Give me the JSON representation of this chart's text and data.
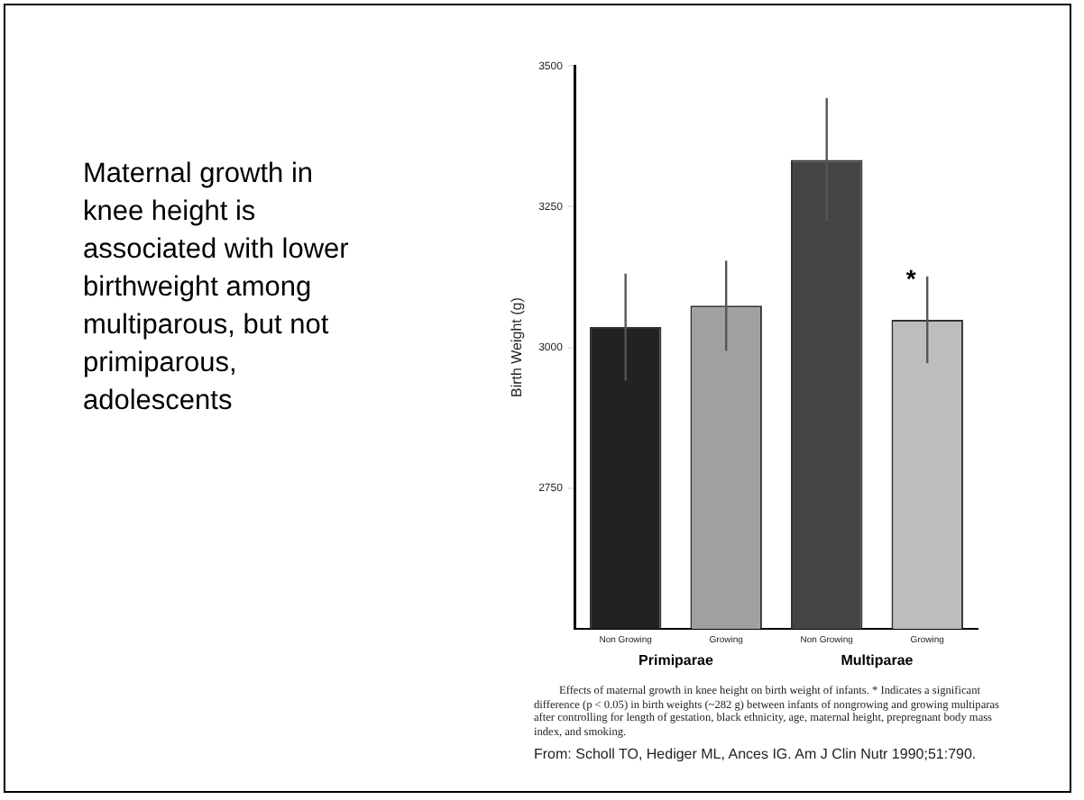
{
  "chart_data": {
    "type": "bar",
    "title": "Maternal growth in knee height is associated with lower birthweight among multiparous, but not primiparous, adolescents",
    "ylabel": "Birth Weight (g)",
    "categories": [
      "Non Growing",
      "Growing",
      "Non Growing",
      "Growing"
    ],
    "values": [
      3036,
      3074,
      3333,
      3049
    ],
    "errors": [
      95,
      80,
      110,
      77
    ],
    "colors": [
      "#222222",
      "#a0a0a0",
      "#444444",
      "#bdbdbd"
    ],
    "ylim": [
      2500,
      3500
    ],
    "yticks": [
      2750,
      3000,
      3250,
      3500
    ],
    "grid": false,
    "legend": false,
    "annotations": [
      "Primiparae",
      "Multiparae",
      "*",
      "Effects of maternal growth in knee height on birth weight of infants. * Indicates a significant difference (p < 0.05) in birth weights (~282 g) between infants of nongrowing and growing multiparas after controlling for length of gestation, black ethnicity, age, maternal height, prepregnant body mass index, and smoking.",
      "From: Scholl TO, Hediger ML, Ances IG. Am J Clin Nutr 1990;51:790."
    ]
  }
}
